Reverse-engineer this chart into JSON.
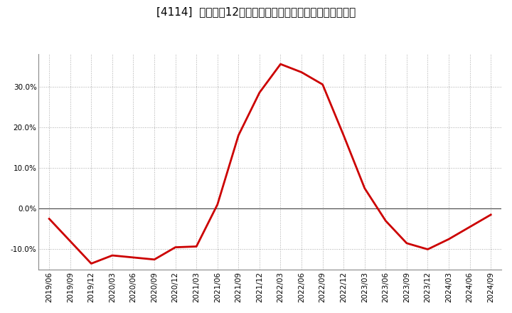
{
  "title": "[4114]  売上高の12か月移動合計の対前年同期増減率の推移",
  "x_labels": [
    "2019/06",
    "2019/09",
    "2019/12",
    "2020/03",
    "2020/06",
    "2020/09",
    "2020/12",
    "2021/03",
    "2021/06",
    "2021/09",
    "2021/12",
    "2022/03",
    "2022/06",
    "2022/09",
    "2022/12",
    "2023/03",
    "2023/06",
    "2023/09",
    "2023/12",
    "2024/03",
    "2024/06",
    "2024/09"
  ],
  "y_values": [
    -2.5,
    -8.0,
    -13.5,
    -11.5,
    -12.0,
    -12.5,
    -9.5,
    -9.3,
    1.0,
    18.0,
    28.5,
    35.5,
    33.5,
    30.5,
    18.0,
    5.0,
    -3.0,
    -8.5,
    -10.0,
    -7.5,
    -4.5,
    -1.5
  ],
  "line_color": "#cc0000",
  "line_width": 2.0,
  "background_color": "#ffffff",
  "plot_bg_color": "#ffffff",
  "grid_color": "#aaaaaa",
  "ylim": [
    -15,
    38
  ],
  "yticks": [
    -10,
    0,
    10,
    20,
    30
  ],
  "title_fontsize": 11,
  "axis_fontsize": 7.5,
  "zero_line_color": "#444444",
  "spine_color": "#888888"
}
